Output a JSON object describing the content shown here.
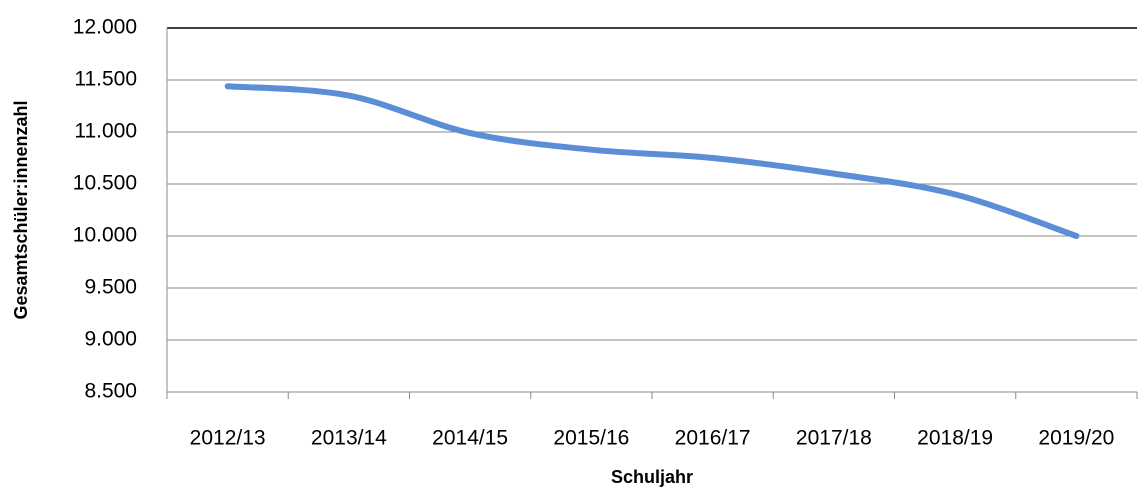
{
  "chart_data": {
    "type": "line",
    "x_label": "Schuljahr",
    "y_label": "Gesamtschüler:innenzahl",
    "categories": [
      "2012/13",
      "2013/14",
      "2014/15",
      "2015/16",
      "2016/17",
      "2017/18",
      "2018/19",
      "2019/20"
    ],
    "series": [
      {
        "name": "Gesamtschüler:innenzahl",
        "color": "#5b8ed6",
        "values": [
          11440,
          11350,
          10990,
          10830,
          10750,
          10600,
          10400,
          10000
        ]
      }
    ],
    "ylim": [
      8500,
      12000
    ],
    "yticks": [
      {
        "value": 8500,
        "label": "8.500"
      },
      {
        "value": 9000,
        "label": "9.000"
      },
      {
        "value": 9500,
        "label": "9.500"
      },
      {
        "value": 10000,
        "label": "10.000"
      },
      {
        "value": 10500,
        "label": "10.500"
      },
      {
        "value": 11000,
        "label": "11.000"
      },
      {
        "value": 11500,
        "label": "11.500"
      },
      {
        "value": 12000,
        "label": "12.000"
      }
    ],
    "grid": true
  }
}
